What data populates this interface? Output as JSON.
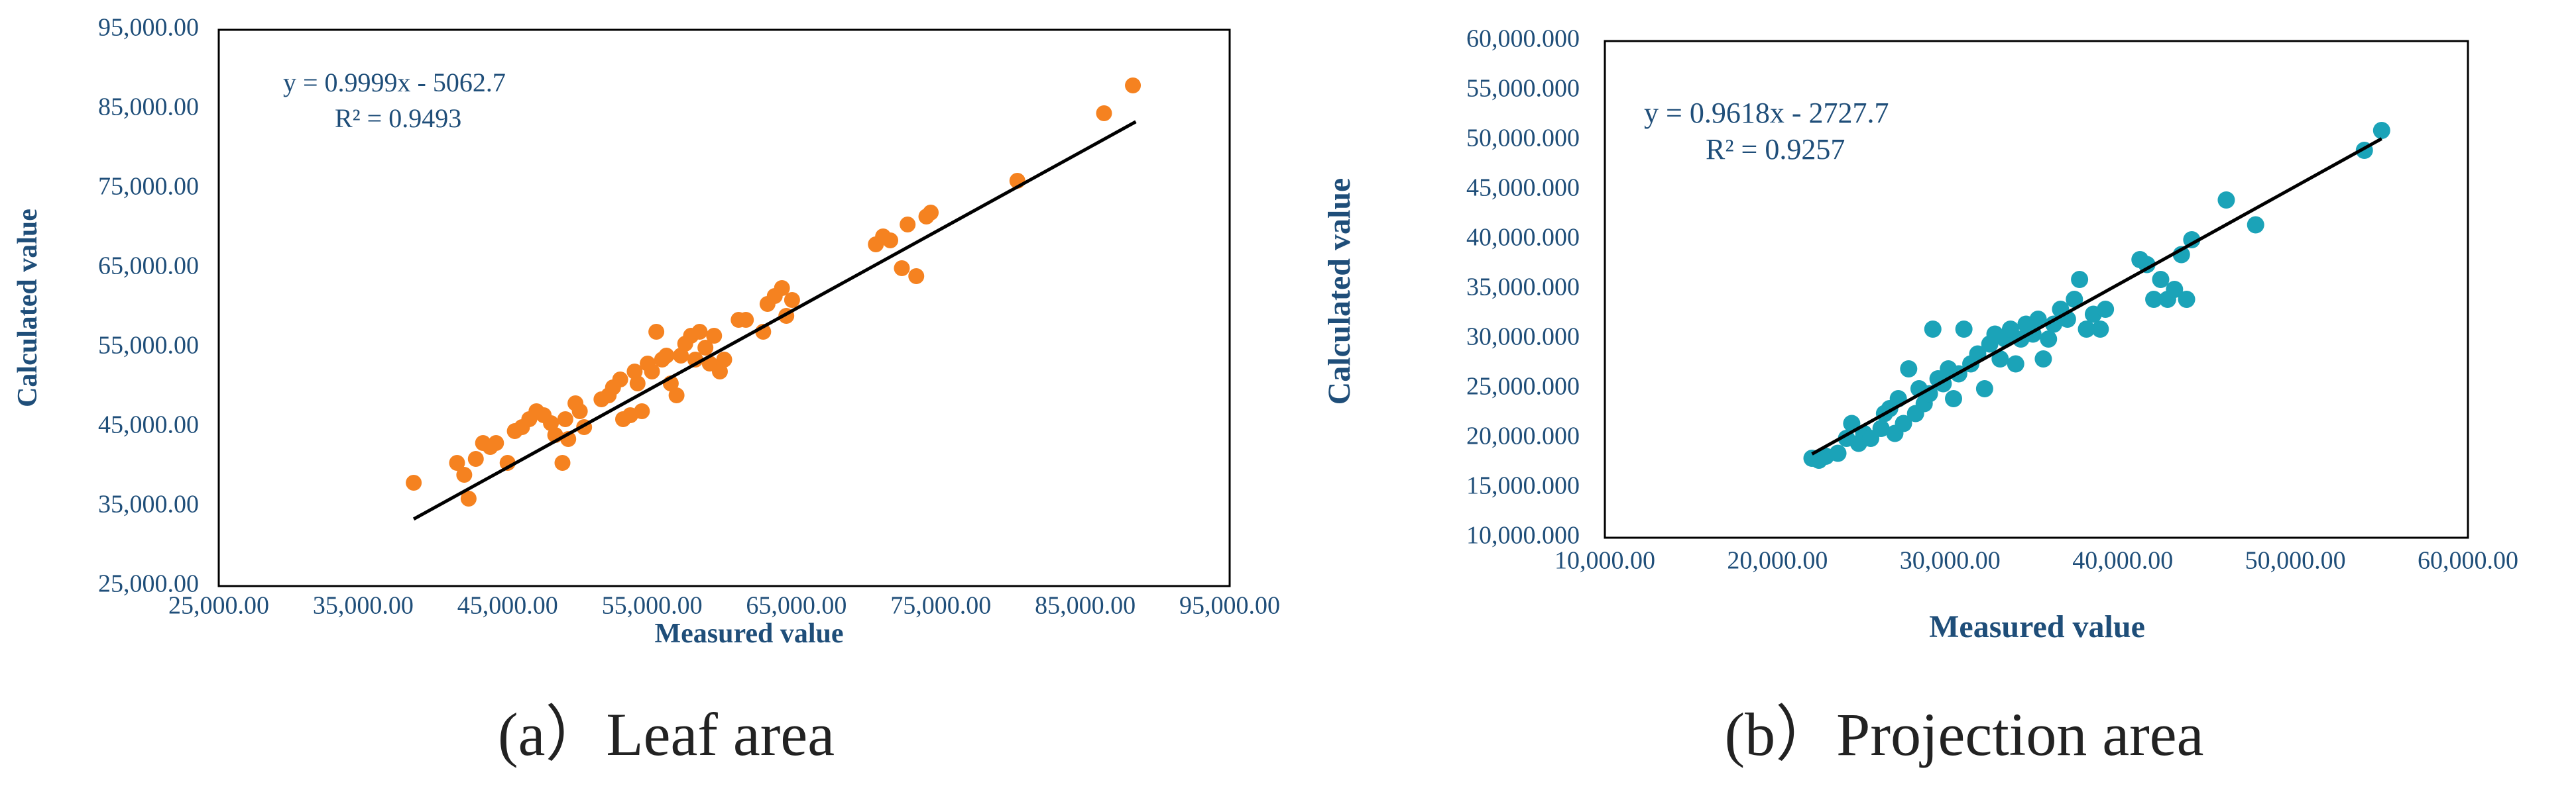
{
  "chart_data": [
    {
      "type": "scatter",
      "caption": "(a）Leaf area",
      "xlabel": "Measured value",
      "ylabel": "Calculated value",
      "xlim": [
        25000,
        95000
      ],
      "ylim": [
        25000,
        95000
      ],
      "x_ticks": [
        "25,000.00",
        "35,000.00",
        "45,000.00",
        "55,000.00",
        "65,000.00",
        "75,000.00",
        "85,000.00",
        "95,000.00"
      ],
      "y_ticks": [
        "25,000.00",
        "35,000.00",
        "45,000.00",
        "55,000.00",
        "65,000.00",
        "75,000.00",
        "85,000.00",
        "95,000.00"
      ],
      "grid": false,
      "marker_color": "#f58220",
      "trendline": {
        "equation": "y = 0.9999x - 5062.7",
        "r2": "R² = 0.9493",
        "slope": 0.9999,
        "intercept": -5062.7,
        "x_range": [
          38500,
          88500
        ],
        "color": "#000000"
      },
      "series": [
        {
          "points": [
            [
              38500,
              38000
            ],
            [
              41500,
              40500
            ],
            [
              42000,
              39000
            ],
            [
              42300,
              36000
            ],
            [
              42800,
              41000
            ],
            [
              43300,
              43000
            ],
            [
              43800,
              42500
            ],
            [
              44200,
              43000
            ],
            [
              45000,
              40500
            ],
            [
              45500,
              44500
            ],
            [
              46000,
              45000
            ],
            [
              46500,
              46000
            ],
            [
              47000,
              47000
            ],
            [
              47500,
              46500
            ],
            [
              48000,
              45500
            ],
            [
              48300,
              44000
            ],
            [
              48800,
              40500
            ],
            [
              49000,
              46000
            ],
            [
              49200,
              43500
            ],
            [
              49700,
              48000
            ],
            [
              50000,
              47000
            ],
            [
              50300,
              45000
            ],
            [
              51500,
              48500
            ],
            [
              52000,
              49000
            ],
            [
              52300,
              50000
            ],
            [
              52800,
              51000
            ],
            [
              53000,
              46000
            ],
            [
              53500,
              46500
            ],
            [
              53800,
              52000
            ],
            [
              54000,
              50500
            ],
            [
              54300,
              47000
            ],
            [
              54700,
              53000
            ],
            [
              55000,
              52000
            ],
            [
              55300,
              57000
            ],
            [
              55700,
              53500
            ],
            [
              56000,
              54000
            ],
            [
              56300,
              50500
            ],
            [
              56700,
              49000
            ],
            [
              57000,
              54000
            ],
            [
              57300,
              55500
            ],
            [
              57700,
              56500
            ],
            [
              58000,
              53500
            ],
            [
              58300,
              57000
            ],
            [
              58700,
              55000
            ],
            [
              59000,
              53000
            ],
            [
              59300,
              56500
            ],
            [
              59700,
              52000
            ],
            [
              60000,
              53500
            ],
            [
              61000,
              58500
            ],
            [
              61500,
              58500
            ],
            [
              62700,
              57000
            ],
            [
              63000,
              60500
            ],
            [
              63500,
              61500
            ],
            [
              64000,
              62500
            ],
            [
              64300,
              59000
            ],
            [
              64700,
              61000
            ],
            [
              70500,
              68000
            ],
            [
              71000,
              69000
            ],
            [
              71500,
              68500
            ],
            [
              72300,
              65000
            ],
            [
              72700,
              70500
            ],
            [
              73300,
              64000
            ],
            [
              74000,
              71500
            ],
            [
              74300,
              72000
            ],
            [
              80300,
              76000
            ],
            [
              86300,
              84500
            ],
            [
              88300,
              88000
            ]
          ]
        }
      ]
    },
    {
      "type": "scatter",
      "caption": "(b）Projection area",
      "xlabel": "Measured value",
      "ylabel": "Calculated  value",
      "xlim": [
        10000,
        60000
      ],
      "ylim": [
        10000,
        60000
      ],
      "x_ticks": [
        "10,000.00",
        "20,000.00",
        "30,000.00",
        "40,000.00",
        "50,000.00",
        "60,000.00"
      ],
      "y_ticks": [
        "10,000.000",
        "15,000.000",
        "20,000.000",
        "25,000.000",
        "30,000.000",
        "35,000.000",
        "40,000.000",
        "45,000.000",
        "50,000.000",
        "55,000.000",
        "60,000.000"
      ],
      "grid": false,
      "marker_color": "#1ba3b8",
      "trendline": {
        "equation": "y = 0.9618x - 2727.7",
        "r2": "R² = 0.9257",
        "slope": 0.9618,
        "intercept": -2727.7,
        "x_range": [
          22000,
          55000
        ],
        "color": "#000000"
      },
      "series": [
        {
          "points": [
            [
              22000,
              18000
            ],
            [
              22400,
              17800
            ],
            [
              22800,
              18200
            ],
            [
              23500,
              18500
            ],
            [
              24000,
              20000
            ],
            [
              24300,
              21500
            ],
            [
              24700,
              19500
            ],
            [
              25000,
              20500
            ],
            [
              25400,
              20000
            ],
            [
              26000,
              21000
            ],
            [
              26200,
              22500
            ],
            [
              26500,
              23000
            ],
            [
              26800,
              20500
            ],
            [
              27000,
              24000
            ],
            [
              27300,
              21500
            ],
            [
              27600,
              27000
            ],
            [
              28000,
              22500
            ],
            [
              28200,
              25000
            ],
            [
              28500,
              23500
            ],
            [
              28800,
              24500
            ],
            [
              29000,
              31000
            ],
            [
              29300,
              26000
            ],
            [
              29600,
              25500
            ],
            [
              29900,
              27000
            ],
            [
              30200,
              24000
            ],
            [
              30500,
              26500
            ],
            [
              30800,
              31000
            ],
            [
              31200,
              27500
            ],
            [
              31600,
              28500
            ],
            [
              32000,
              25000
            ],
            [
              32300,
              29500
            ],
            [
              32600,
              30500
            ],
            [
              32900,
              28000
            ],
            [
              33200,
              30000
            ],
            [
              33500,
              31000
            ],
            [
              33800,
              27500
            ],
            [
              34100,
              30000
            ],
            [
              34400,
              31500
            ],
            [
              34800,
              30500
            ],
            [
              35100,
              32000
            ],
            [
              35400,
              28000
            ],
            [
              35700,
              30000
            ],
            [
              36000,
              31500
            ],
            [
              36400,
              33000
            ],
            [
              36800,
              32000
            ],
            [
              37200,
              34000
            ],
            [
              37500,
              36000
            ],
            [
              37900,
              31000
            ],
            [
              38300,
              32500
            ],
            [
              38700,
              31000
            ],
            [
              39000,
              33000
            ],
            [
              41000,
              38000
            ],
            [
              41400,
              37500
            ],
            [
              41800,
              34000
            ],
            [
              42200,
              36000
            ],
            [
              42600,
              34000
            ],
            [
              43000,
              35000
            ],
            [
              43400,
              38500
            ],
            [
              43700,
              34000
            ],
            [
              44000,
              40000
            ],
            [
              46000,
              44000
            ],
            [
              47700,
              41500
            ],
            [
              54000,
              49000
            ],
            [
              55000,
              51000
            ]
          ]
        }
      ]
    }
  ]
}
